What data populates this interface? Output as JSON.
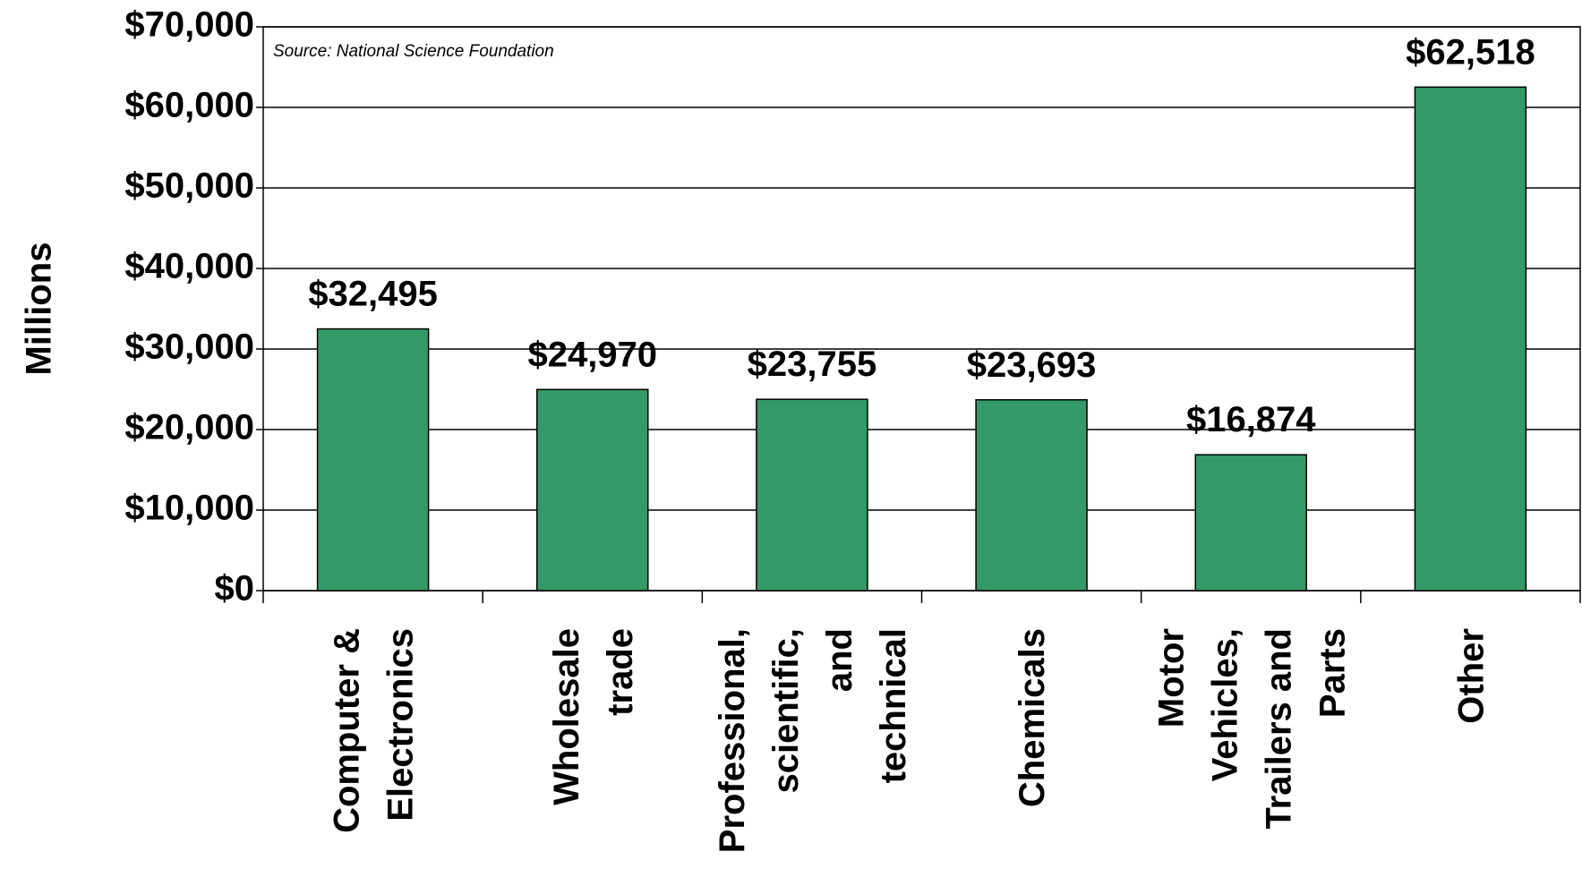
{
  "chart_data": {
    "type": "bar",
    "annotation": "Source: National Science Foundation",
    "y_label": "Millions",
    "categories": [
      "Computer &\nElectronics",
      "Wholesale\ntrade",
      "Professional,\nscientific,\nand\ntechnical",
      "Chemicals",
      "Motor\nVehicles,\nTrailers and\nParts",
      "Other"
    ],
    "values": [
      32495,
      24970,
      23755,
      23693,
      16874,
      62518
    ],
    "value_labels": [
      "$32,495",
      "$24,970",
      "$23,755",
      "$23,693",
      "$16,874",
      "$62,518"
    ],
    "color": "#339966",
    "ylim": [
      0,
      70000
    ],
    "yticks": [
      {
        "value": 0,
        "label": "$0"
      },
      {
        "value": 10000,
        "label": "$10,000"
      },
      {
        "value": 20000,
        "label": "$20,000"
      },
      {
        "value": 30000,
        "label": "$30,000"
      },
      {
        "value": 40000,
        "label": "$40,000"
      },
      {
        "value": 50000,
        "label": "$50,000"
      },
      {
        "value": 60000,
        "label": "$60,000"
      },
      {
        "value": 70000,
        "label": "$70,000"
      }
    ],
    "grid": true
  }
}
